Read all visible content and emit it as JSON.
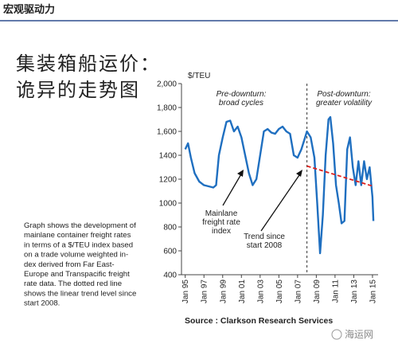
{
  "header": "宏观驱动力",
  "slide_title": [
    "集装箱船运价：",
    "诡异的走势图"
  ],
  "description": [
    "Graph shows the development of",
    "mainlane container freight rates",
    "in terms of a $/TEU index based",
    "on a trade volume weighted in-",
    "dex derived from Far East-",
    "Europe and Transpacific freight",
    "rate data. The dotted red line",
    "shows the linear trend level since",
    "start 2008."
  ],
  "watermark": "海运网",
  "chart_data": {
    "type": "line",
    "y_label": "$/TEU",
    "annotations": {
      "pre": [
        "Pre-downturn:",
        "broad cycles"
      ],
      "post": [
        "Post-downturn:",
        "greater volatility"
      ],
      "series_label": [
        "Mainlane",
        "freight rate",
        "index"
      ],
      "trend_label": [
        "Trend since",
        "start 2008"
      ]
    },
    "source": "Source : Clarkson Research Services",
    "xlim": [
      1994.6,
      2015.6
    ],
    "ylim": [
      400,
      2000
    ],
    "xticks": [
      {
        "value": 1995,
        "label": "Jan 95"
      },
      {
        "value": 1997,
        "label": "Jan 97"
      },
      {
        "value": 1999,
        "label": "Jan 99"
      },
      {
        "value": 2001,
        "label": "Jan 01"
      },
      {
        "value": 2003,
        "label": "Jan 03"
      },
      {
        "value": 2005,
        "label": "Jan 05"
      },
      {
        "value": 2007,
        "label": "Jan 07"
      },
      {
        "value": 2009,
        "label": "Jan 09"
      },
      {
        "value": 2011,
        "label": "Jan 11"
      },
      {
        "value": 2013,
        "label": "Jan 13"
      },
      {
        "value": 2015,
        "label": "Jan 15"
      }
    ],
    "yticks": [
      400,
      600,
      800,
      1000,
      1200,
      1400,
      {
        "value": 1600,
        "label": "1,600"
      },
      {
        "value": 1800,
        "label": "1,800"
      },
      {
        "value": 2000,
        "label": "2,000"
      }
    ],
    "divider_x": 2008,
    "series": [
      {
        "color": "#1f6fc0",
        "x": [
          1995.0,
          1995.3,
          1995.6,
          1996.0,
          1996.5,
          1997.0,
          1997.5,
          1998.0,
          1998.3,
          1998.6,
          1999.0,
          1999.4,
          1999.8,
          2000.2,
          2000.6,
          2001.0,
          2001.4,
          2001.8,
          2002.2,
          2002.6,
          2003.0,
          2003.4,
          2003.8,
          2004.2,
          2004.6,
          2005.0,
          2005.4,
          2005.8,
          2006.2,
          2006.6,
          2007.0,
          2007.4,
          2007.8,
          2008.0,
          2008.4,
          2008.8,
          2009.1,
          2009.4,
          2009.7,
          2010.0,
          2010.3,
          2010.5,
          2010.8,
          2011.1,
          2011.4,
          2011.7,
          2012.0,
          2012.3,
          2012.6,
          2012.9,
          2013.2,
          2013.5,
          2013.8,
          2014.1,
          2014.4,
          2014.7,
          2015.0,
          2015.1
        ],
        "values": [
          1450,
          1500,
          1380,
          1250,
          1180,
          1150,
          1140,
          1130,
          1150,
          1400,
          1550,
          1680,
          1690,
          1600,
          1640,
          1550,
          1400,
          1250,
          1150,
          1200,
          1400,
          1600,
          1620,
          1590,
          1580,
          1620,
          1640,
          1600,
          1580,
          1400,
          1380,
          1450,
          1550,
          1600,
          1550,
          1380,
          1000,
          580,
          900,
          1400,
          1700,
          1720,
          1500,
          1150,
          1000,
          830,
          850,
          1450,
          1550,
          1300,
          1150,
          1350,
          1150,
          1350,
          1200,
          1300,
          1050,
          850
        ]
      },
      {
        "color": "#e0201b",
        "dashed": true,
        "x": [
          2008.0,
          2015.1
        ],
        "values": [
          1310,
          1140
        ]
      }
    ]
  }
}
